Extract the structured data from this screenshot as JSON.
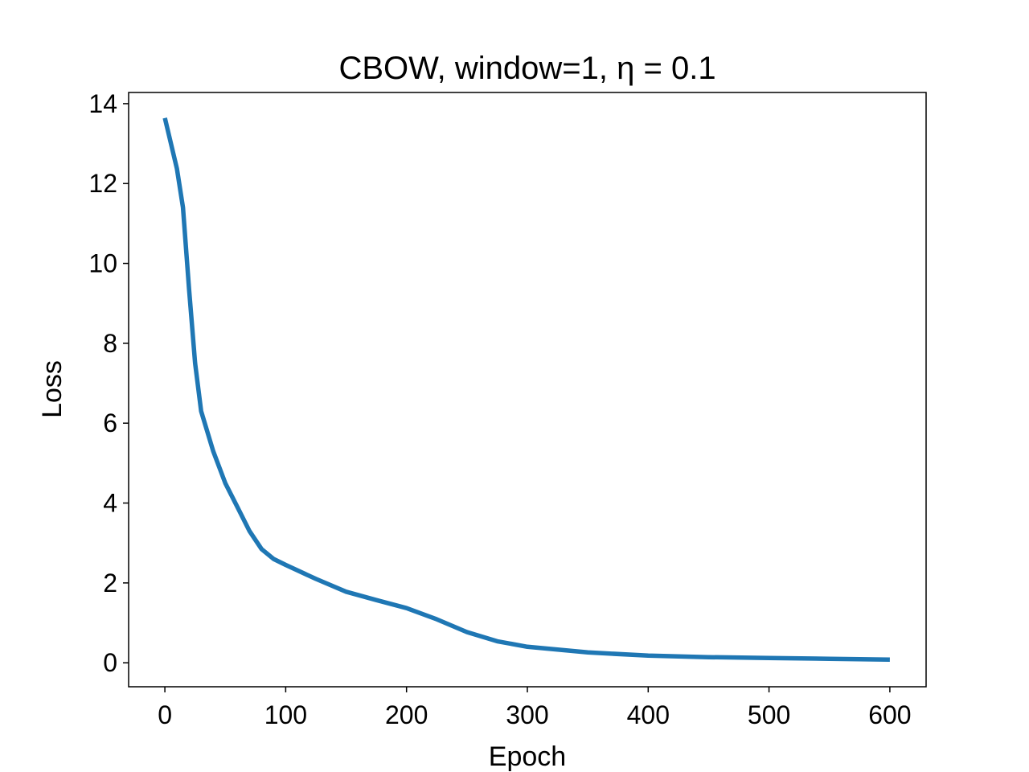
{
  "chart_data": {
    "type": "line",
    "title": "CBOW, window=1, η = 0.1",
    "x_label": "Epoch",
    "y_label": "Loss",
    "x": [
      0,
      10,
      15,
      20,
      25,
      30,
      40,
      50,
      60,
      70,
      80,
      90,
      100,
      125,
      150,
      175,
      200,
      225,
      250,
      275,
      300,
      350,
      400,
      450,
      500,
      550,
      600
    ],
    "series": [
      {
        "name": "Loss",
        "color": "#1f77b4",
        "values": [
          13.64,
          12.37,
          11.4,
          9.35,
          7.5,
          6.3,
          5.3,
          4.5,
          3.9,
          3.3,
          2.85,
          2.6,
          2.45,
          2.1,
          1.78,
          1.57,
          1.37,
          1.09,
          0.77,
          0.54,
          0.4,
          0.26,
          0.18,
          0.14,
          0.12,
          0.1,
          0.08
        ]
      }
    ],
    "xlim": [
      -30,
      630
    ],
    "ylim": [
      -0.6,
      14.28
    ],
    "xticks": [
      0,
      100,
      200,
      300,
      400,
      500,
      600
    ],
    "yticks": [
      0,
      2,
      4,
      6,
      8,
      10,
      12,
      14
    ],
    "grid": false
  }
}
